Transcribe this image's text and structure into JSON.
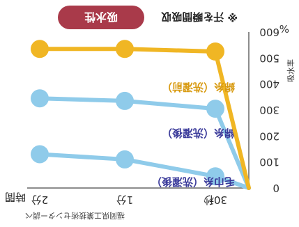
{
  "chart_data": {
    "type": "line",
    "badge": "吸水性",
    "note": "※ 汗を瞬間吸収",
    "ylabel": "吸水率",
    "yunit": "%",
    "ylim": [
      0,
      600
    ],
    "yticks": [
      "0",
      "100",
      "200",
      "300",
      "400",
      "500",
      "600"
    ],
    "xlabel": "時間",
    "categories": [
      "0",
      "30秒",
      "1分",
      "2分"
    ],
    "series": [
      {
        "name": "毛巾糸（洗濯後）",
        "color": "#8fcbea",
        "values": [
          0,
          45,
          110,
          130
        ]
      },
      {
        "name": "綿糸（洗濯後）",
        "color": "#8fcbea",
        "values": [
          0,
          305,
          335,
          345
        ]
      },
      {
        "name": "綿糸（洗濯前）",
        "color": "#f0b624",
        "values": [
          0,
          525,
          535,
          535
        ]
      }
    ],
    "source": "福岡県工業技術センター調べ"
  }
}
